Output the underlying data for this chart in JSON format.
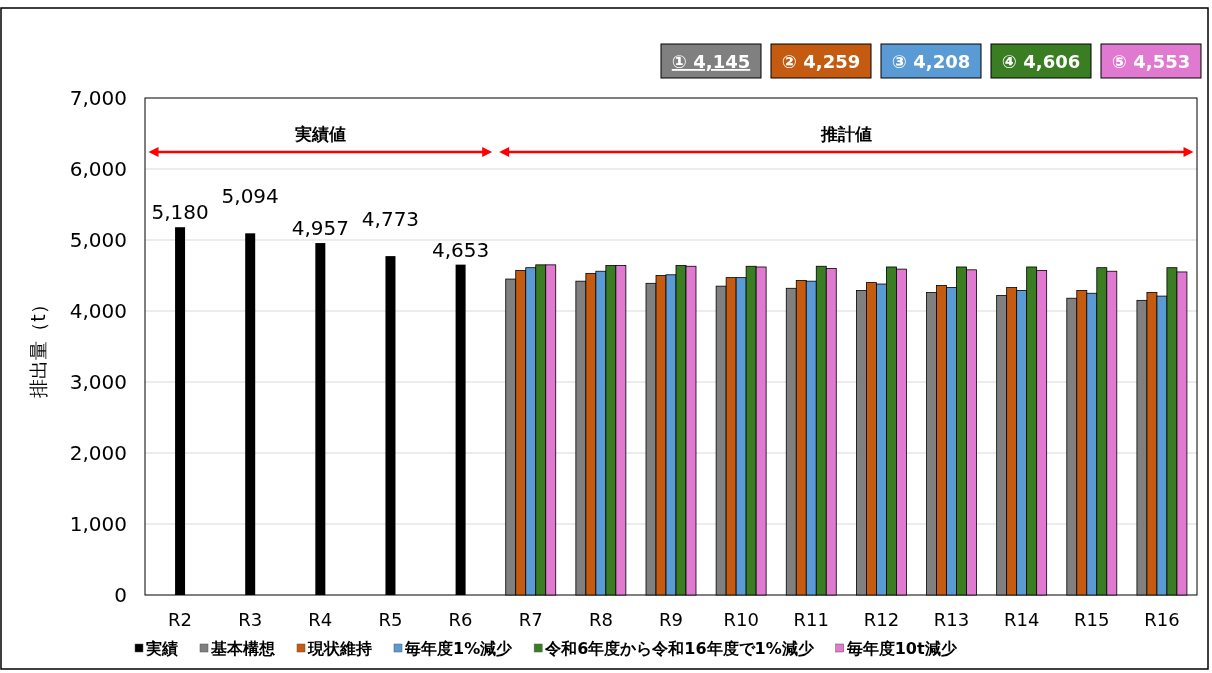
{
  "chart_data": {
    "type": "bar",
    "ylabel": "排出量（t）",
    "categories": [
      "R2",
      "R3",
      "R4",
      "R5",
      "R6",
      "R7",
      "R8",
      "R9",
      "R10",
      "R11",
      "R12",
      "R13",
      "R14",
      "R15",
      "R16"
    ],
    "series": [
      {
        "name": "実績",
        "color": "#000000",
        "values": [
          5180,
          5094,
          4957,
          4773,
          4653,
          null,
          null,
          null,
          null,
          null,
          null,
          null,
          null,
          null,
          null
        ],
        "value_labels": [
          "5,180",
          "5,094",
          "4,957",
          "4,773",
          "4,653",
          null,
          null,
          null,
          null,
          null,
          null,
          null,
          null,
          null,
          null
        ]
      },
      {
        "name": "基本構想",
        "color": "#808080",
        "values": [
          null,
          null,
          null,
          null,
          null,
          4450,
          4420,
          4390,
          4350,
          4320,
          4290,
          4260,
          4220,
          4180,
          4150
        ]
      },
      {
        "name": "現状維持",
        "color": "#c55a11",
        "values": [
          null,
          null,
          null,
          null,
          null,
          4570,
          4530,
          4500,
          4470,
          4430,
          4400,
          4360,
          4330,
          4290,
          4260
        ]
      },
      {
        "name": "毎年度1%減少",
        "color": "#5b9bd5",
        "values": [
          null,
          null,
          null,
          null,
          null,
          4610,
          4560,
          4510,
          4470,
          4420,
          4380,
          4330,
          4290,
          4250,
          4210
        ]
      },
      {
        "name": "令和6年度から令和16年度で1%減少",
        "color": "#3a7d22",
        "values": [
          null,
          null,
          null,
          null,
          null,
          4650,
          4640,
          4640,
          4630,
          4630,
          4620,
          4620,
          4620,
          4610,
          4610
        ]
      },
      {
        "name": "毎年度10t減少",
        "color": "#e07ad0",
        "values": [
          null,
          null,
          null,
          null,
          null,
          4650,
          4640,
          4630,
          4620,
          4600,
          4590,
          4580,
          4570,
          4560,
          4550
        ]
      }
    ],
    "ylim": [
      0,
      7000
    ],
    "yticks": [
      0,
      {
        "value": 1000,
        "label": "1,000"
      },
      {
        "value": 2000,
        "label": "2,000"
      },
      {
        "value": 3000,
        "label": "3,000"
      },
      {
        "value": 4000,
        "label": "4,000"
      },
      {
        "value": 5000,
        "label": "5,000"
      },
      {
        "value": 6000,
        "label": "6,000"
      },
      {
        "value": 7000,
        "label": "7,000"
      }
    ],
    "grid": "y",
    "legend": "bottom",
    "annotations": [
      "実績値",
      "推計値",
      "① 4,145",
      "② 4,259",
      "③ 4,208",
      "④ 4,606",
      "⑤ 4,553"
    ]
  }
}
